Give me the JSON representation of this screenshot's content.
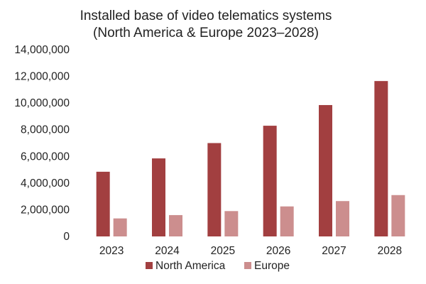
{
  "chart_data": {
    "type": "bar",
    "title": "Installed base of video telematics systems",
    "subtitle": "(North America & Europe 2023–2028)",
    "xlabel": "",
    "ylabel": "",
    "categories": [
      "2023",
      "2024",
      "2025",
      "2026",
      "2027",
      "2028"
    ],
    "series": [
      {
        "name": "North America",
        "color": "#a23f40",
        "values": [
          4850000,
          5850000,
          7000000,
          8300000,
          9850000,
          11650000
        ]
      },
      {
        "name": "Europe",
        "color": "#cc8e8e",
        "values": [
          1350000,
          1600000,
          1900000,
          2250000,
          2650000,
          3100000
        ]
      }
    ],
    "ylim": [
      0,
      14000000
    ],
    "yticks": [
      0,
      2000000,
      4000000,
      6000000,
      8000000,
      10000000,
      12000000,
      14000000
    ],
    "ytick_labels": [
      "0",
      "2,000,000",
      "4,000,000",
      "6,000,000",
      "8,000,000",
      "10,000,000",
      "12,000,000",
      "14,000,000"
    ],
    "grid": false,
    "legend_position": "bottom"
  }
}
